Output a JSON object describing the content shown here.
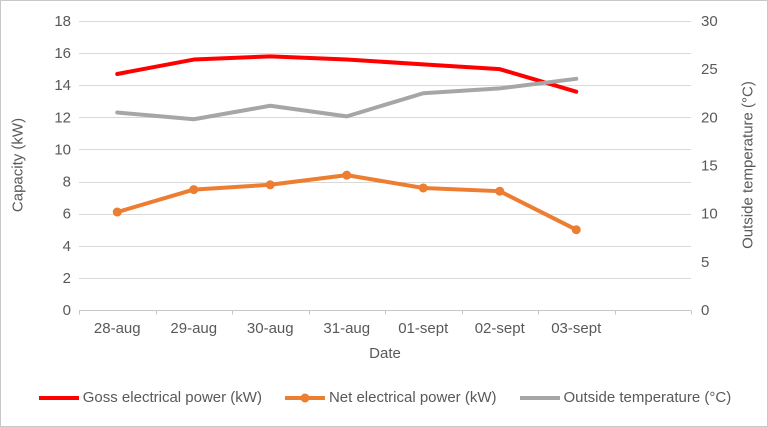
{
  "chart_data": {
    "type": "line",
    "title": "",
    "xlabel": "Date",
    "ylabel": "Capacity (kW)",
    "ylabel_right": "Outside temperature (°C)",
    "categories": [
      "28-aug",
      "29-aug",
      "30-aug",
      "31-aug",
      "01-sept",
      "02-sept",
      "03-sept"
    ],
    "x_slots": 8,
    "series": [
      {
        "name": "Goss electrical power (kW)",
        "axis": "left",
        "color": "#FF0000",
        "marker": false,
        "values": [
          14.7,
          15.6,
          15.8,
          15.6,
          15.3,
          15.0,
          13.6
        ]
      },
      {
        "name": "Net electrical power (kW)",
        "axis": "left",
        "color": "#ED7D31",
        "marker": true,
        "values": [
          6.1,
          7.5,
          7.8,
          8.4,
          7.6,
          7.4,
          5.0
        ]
      },
      {
        "name": "Outside temperature (°C)",
        "axis": "right",
        "color": "#A6A6A6",
        "marker": false,
        "values": [
          20.5,
          19.8,
          21.2,
          20.1,
          22.5,
          23.0,
          24.0
        ]
      }
    ],
    "left_axis": {
      "min": 0,
      "max": 18,
      "step": 2,
      "tick_labels": [
        "0",
        "2",
        "4",
        "6",
        "8",
        "10",
        "12",
        "14",
        "16",
        "18"
      ]
    },
    "right_axis": {
      "min": 0,
      "max": 30,
      "step": 5,
      "tick_labels": [
        "0",
        "5",
        "10",
        "15",
        "20",
        "25",
        "30"
      ]
    },
    "grid": true,
    "legend_position": "bottom",
    "colors": {
      "gridline": "#D9D9D9",
      "axis_line": "#C6C6C6",
      "text": "#595959"
    }
  }
}
